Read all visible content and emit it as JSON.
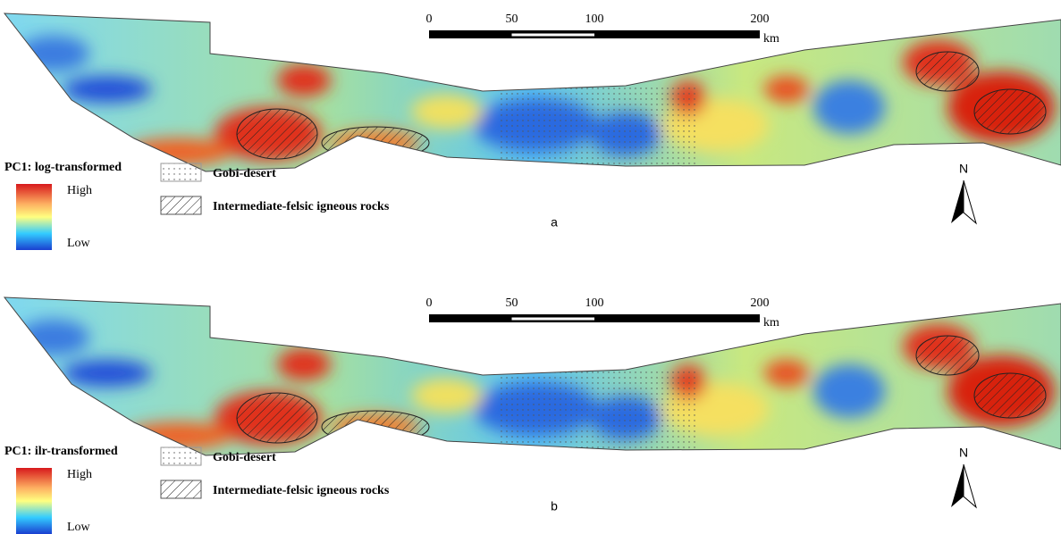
{
  "panels": [
    {
      "label": "a",
      "legend": {
        "title": "PC1: log-transformed",
        "high": "High",
        "low": "Low"
      },
      "patterns": {
        "gobi": "Gobi-desert",
        "igneous": "Intermediate-felsic igneous rocks"
      },
      "scale_bar": {
        "ticks": [
          0,
          50,
          100,
          200
        ],
        "unit": "km"
      },
      "north": "N"
    },
    {
      "label": "b",
      "legend": {
        "title": "PC1: ilr-transformed",
        "high": "High",
        "low": "Low"
      },
      "patterns": {
        "gobi": "Gobi-desert",
        "igneous": "Intermediate-felsic igneous rocks"
      },
      "scale_bar": {
        "ticks": [
          0,
          50,
          100,
          200
        ],
        "unit": "km"
      },
      "north": "N"
    }
  ]
}
